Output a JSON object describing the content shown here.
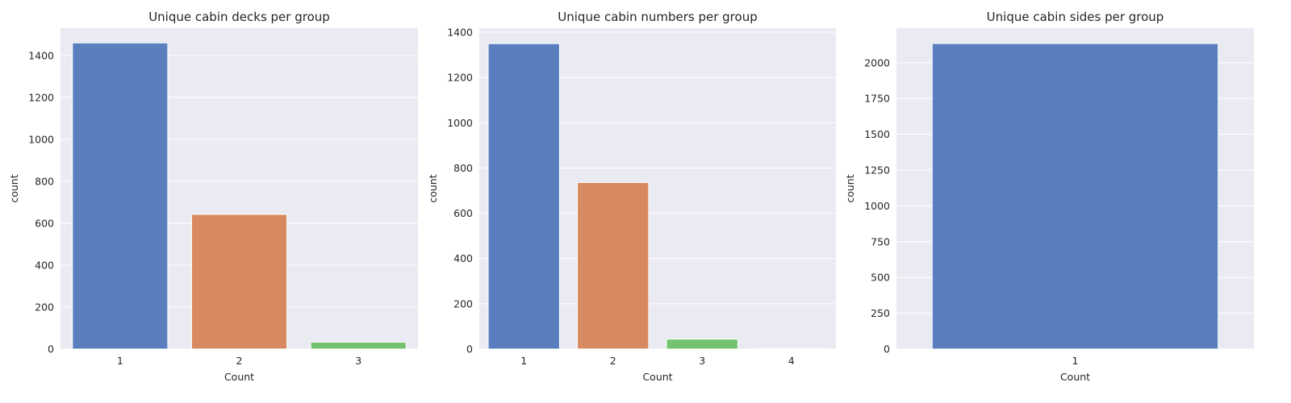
{
  "chart_data": [
    {
      "type": "bar",
      "title": "Unique cabin decks per group",
      "xlabel": "Count",
      "ylabel": "count",
      "categories": [
        "1",
        "2",
        "3"
      ],
      "values": [
        1460,
        642,
        33
      ],
      "ylim": [
        0,
        1530
      ],
      "yticks": [
        0,
        200,
        400,
        600,
        800,
        1000,
        1200,
        1400
      ],
      "grid": true
    },
    {
      "type": "bar",
      "title": "Unique cabin numbers per group",
      "xlabel": "Count",
      "ylabel": "count",
      "categories": [
        "1",
        "2",
        "3",
        "4"
      ],
      "values": [
        1350,
        736,
        44,
        4
      ],
      "ylim": [
        0,
        1418
      ],
      "yticks": [
        0,
        200,
        400,
        600,
        800,
        1000,
        1200,
        1400
      ],
      "grid": true
    },
    {
      "type": "bar",
      "title": "Unique cabin sides per group",
      "xlabel": "Count",
      "ylabel": "count",
      "categories": [
        "1"
      ],
      "values": [
        2134
      ],
      "ylim": [
        0,
        2241
      ],
      "yticks": [
        0,
        250,
        500,
        750,
        1000,
        1250,
        1500,
        1750,
        2000
      ],
      "grid": true
    }
  ],
  "colors": {
    "background": "#eaeaf2",
    "grid": "#ffffff",
    "bars": [
      "#5b7ebf",
      "#d78a5f",
      "#74c26f",
      "#c96a6a"
    ]
  }
}
